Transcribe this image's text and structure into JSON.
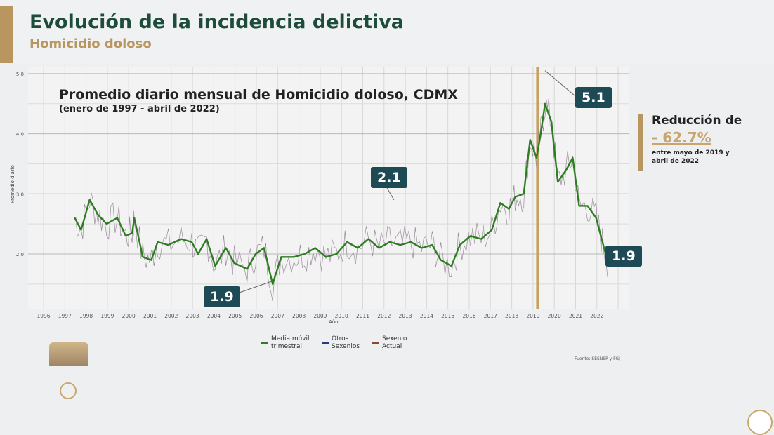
{
  "header": {
    "title": "Evolución de la incidencia delictiva",
    "subtitle": "Homicidio doloso"
  },
  "reduction": {
    "label": "Reducción de",
    "value": "- 62.7%",
    "note": "entre mayo de 2019 y abril de 2022"
  },
  "colors": {
    "brand_green": "#1d4d3a",
    "gold": "#b9955f",
    "badge": "#1e4a56",
    "ma_line": "#2e7d22",
    "monthly": "#9a8a9a",
    "marker_2019": "#c8a060"
  },
  "chart_data": {
    "type": "line",
    "title": "Promedio diario mensual de Homicidio doloso, CDMX",
    "subtitle": "(enero de 1997 - abril de 2022)",
    "xlabel": "Año",
    "ylabel": "Promedio diario",
    "xlim": [
      1996,
      2023
    ],
    "ylim": [
      1.1,
      5.1
    ],
    "x_ticks": [
      "1996",
      "1997",
      "1998",
      "1999",
      "2000",
      "2001",
      "2002",
      "2003",
      "2004",
      "2005",
      "2006",
      "2007",
      "2008",
      "2009",
      "2010",
      "2011",
      "2012",
      "2013",
      "2014",
      "2015",
      "2016",
      "2017",
      "2018",
      "2019",
      "2020",
      "2021",
      "2022"
    ],
    "y_ticks": [
      "2.0",
      "3.0",
      "4.0",
      "5.0"
    ],
    "grid": true,
    "legend": [
      "Media móvil trimestral",
      "Otros Sexenios",
      "Sexenio Actual"
    ],
    "legend_placement": "bottom",
    "source": "Fuente: SESNSP y FGJ",
    "series": [
      {
        "name": "Media móvil trimestral",
        "x": [
          1997.2,
          1997.5,
          1997.9,
          1998.3,
          1998.7,
          1999.2,
          1999.6,
          1999.9,
          2000.0,
          2000.4,
          2000.8,
          2001.1,
          2001.6,
          2002.2,
          2002.7,
          2003.0,
          2003.4,
          2003.8,
          2004.3,
          2004.7,
          2005.3,
          2005.7,
          2006.1,
          2006.5,
          2006.9,
          2007.5,
          2008.0,
          2008.5,
          2009.0,
          2009.5,
          2010.0,
          2010.5,
          2011.0,
          2011.5,
          2012.0,
          2012.5,
          2013.0,
          2013.5,
          2014.0,
          2014.4,
          2014.9,
          2015.3,
          2015.8,
          2016.3,
          2016.8,
          2017.2,
          2017.6,
          2017.9,
          2018.3,
          2018.6,
          2018.9,
          2019.1,
          2019.3,
          2019.6,
          2019.9,
          2020.3,
          2020.6,
          2020.9,
          2021.3,
          2021.7,
          2022.0,
          2022.3
        ],
        "y": [
          2.6,
          2.4,
          2.9,
          2.65,
          2.5,
          2.6,
          2.3,
          2.35,
          2.6,
          1.95,
          1.9,
          2.2,
          2.15,
          2.25,
          2.2,
          2.0,
          2.25,
          1.8,
          2.1,
          1.85,
          1.75,
          2.0,
          2.1,
          1.5,
          1.95,
          1.95,
          2.0,
          2.1,
          1.95,
          2.0,
          2.2,
          2.1,
          2.25,
          2.1,
          2.2,
          2.15,
          2.2,
          2.1,
          2.15,
          1.9,
          1.8,
          2.15,
          2.3,
          2.25,
          2.4,
          2.85,
          2.75,
          2.95,
          3.0,
          3.9,
          3.6,
          4.0,
          4.5,
          4.2,
          3.2,
          3.4,
          3.6,
          2.8,
          2.8,
          2.6,
          2.2,
          1.8
        ]
      }
    ],
    "annotations": [
      {
        "text": "5.1",
        "x": 2019.3,
        "y": 5.1
      },
      {
        "text": "2.1",
        "x": 2012.2,
        "y": 2.9
      },
      {
        "text": "1.9",
        "x": 2006.5,
        "y": 1.5
      },
      {
        "text": "1.9",
        "x": 2022.3,
        "y": 1.8
      }
    ],
    "vertical_marker_x": 2018.95
  }
}
